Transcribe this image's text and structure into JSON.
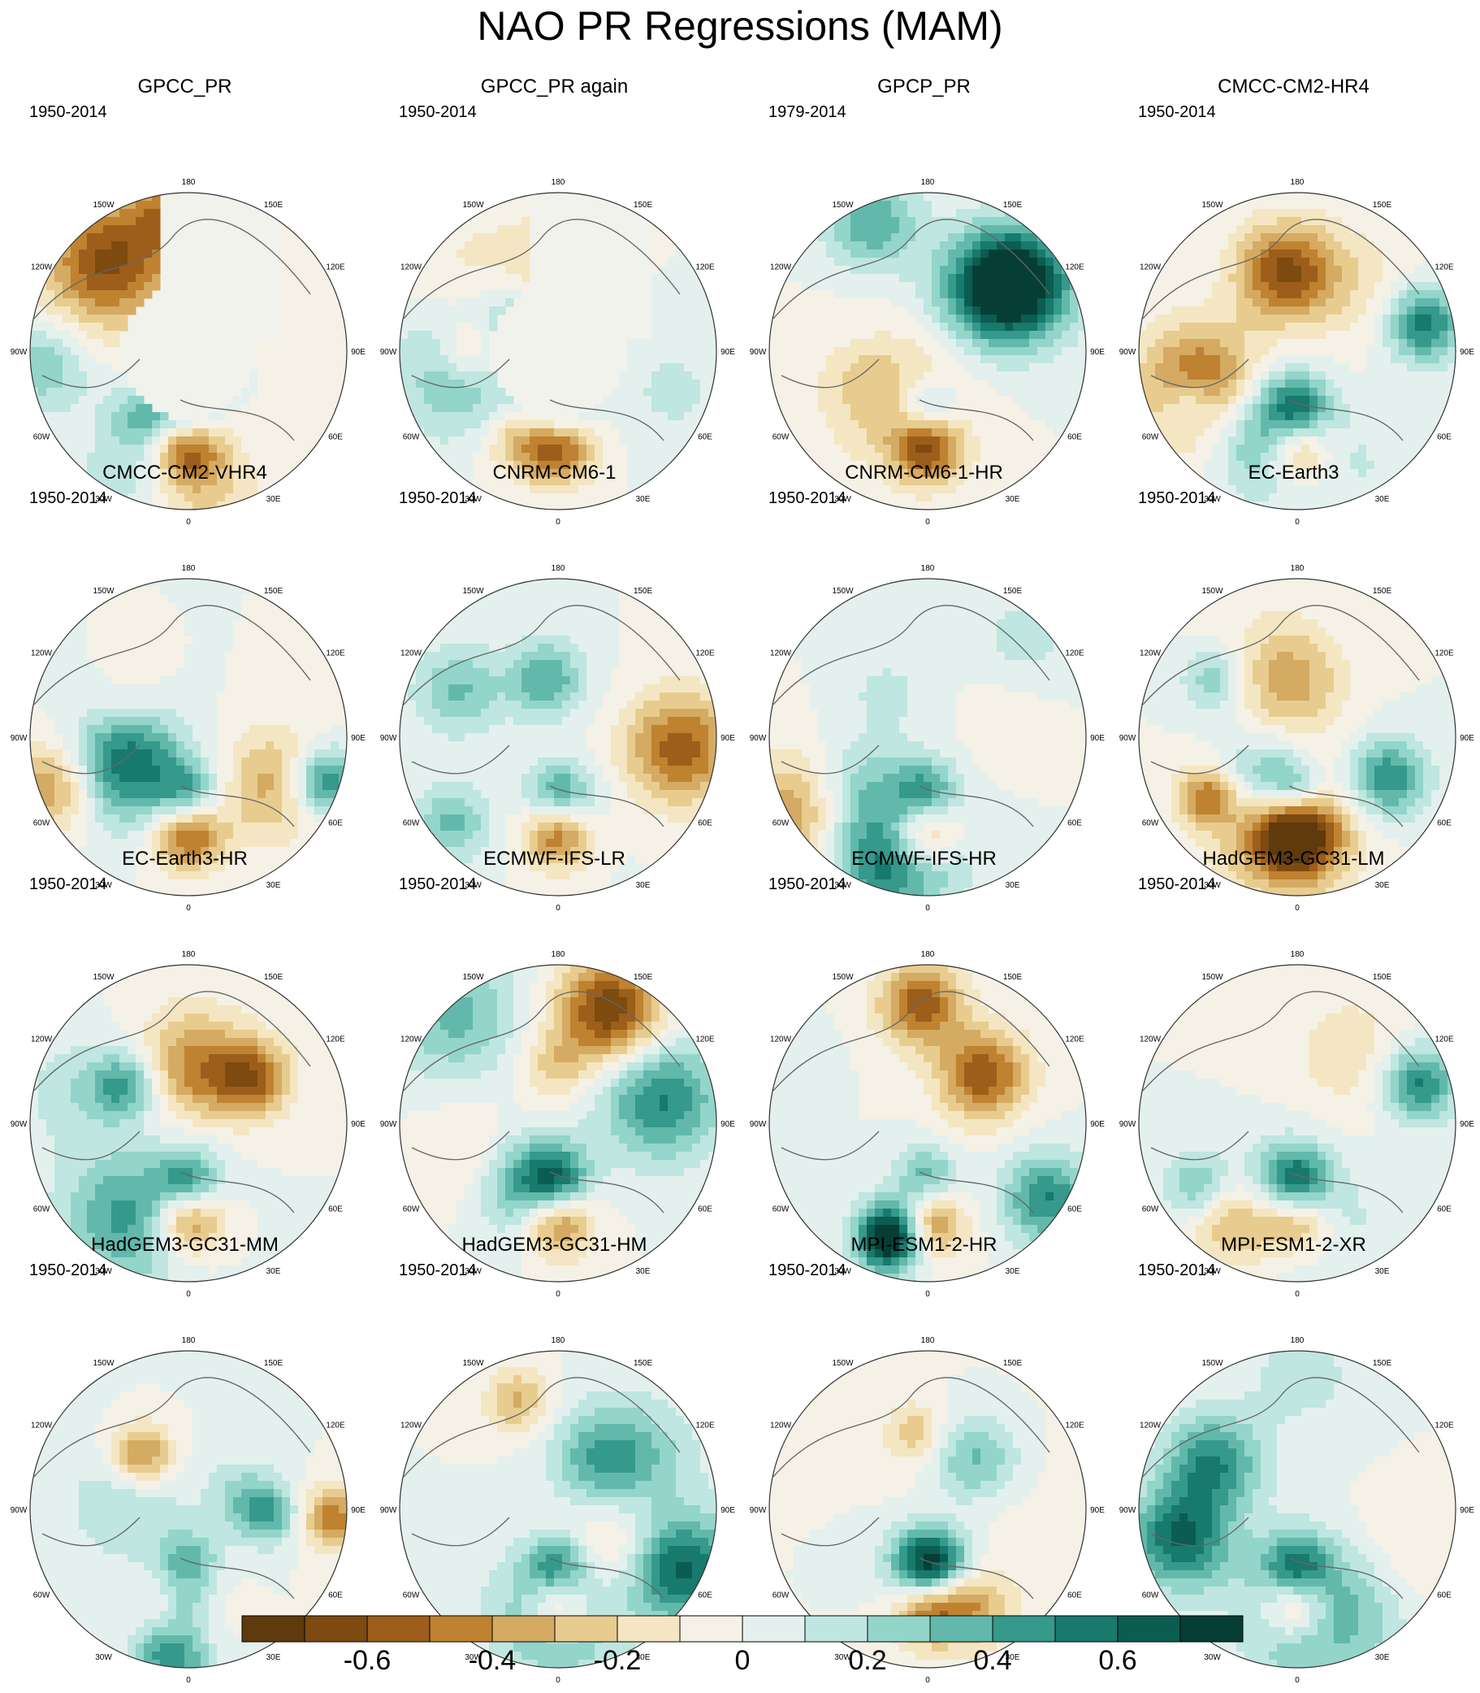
{
  "title": "NAO PR Regressions (MAM)",
  "chart_data": {
    "type": "heatmap",
    "projection": "north polar stereographic",
    "title": "NAO PR Regressions (MAM)",
    "longitude_labels": [
      "180",
      "150E",
      "120E",
      "90E",
      "60E",
      "30E",
      "0",
      "30W",
      "60W",
      "90W",
      "120W",
      "150W"
    ],
    "colorbar": {
      "tick_labels": [
        "-0.6",
        "-0.4",
        "-0.2",
        "0",
        "0.2",
        "0.4",
        "0.6"
      ],
      "tick_values": [
        -0.6,
        -0.4,
        -0.2,
        0,
        0.2,
        0.4,
        0.6
      ],
      "range": [
        -0.8,
        0.8
      ],
      "colors": [
        "#5e3a0c",
        "#7d4a10",
        "#9c5e1a",
        "#bf8230",
        "#d5aa62",
        "#e8cc8f",
        "#f4e6c2",
        "#f5f1e6",
        "#e3f0ee",
        "#bfe6e0",
        "#93d5ca",
        "#62b9ab",
        "#35998b",
        "#18796d",
        "#0b5d51",
        "#063e35"
      ]
    },
    "panels": [
      {
        "title": "GPCC_PR",
        "period": "1950-2014"
      },
      {
        "title": "GPCC_PR again",
        "period": "1950-2014"
      },
      {
        "title": "GPCP_PR",
        "period": "1979-2014"
      },
      {
        "title": "CMCC-CM2-HR4",
        "period": "1950-2014"
      },
      {
        "title": "CMCC-CM2-VHR4",
        "period": "1950-2014"
      },
      {
        "title": "CNRM-CM6-1",
        "period": "1950-2014"
      },
      {
        "title": "CNRM-CM6-1-HR",
        "period": "1950-2014"
      },
      {
        "title": "EC-Earth3",
        "period": "1950-2014"
      },
      {
        "title": "EC-Earth3-HR",
        "period": "1950-2014"
      },
      {
        "title": "ECMWF-IFS-LR",
        "period": "1950-2014"
      },
      {
        "title": "ECMWF-IFS-HR",
        "period": "1950-2014"
      },
      {
        "title": "HadGEM3-GC31-LM",
        "period": "1950-2014"
      },
      {
        "title": "HadGEM3-GC31-MM",
        "period": "1950-2014"
      },
      {
        "title": "HadGEM3-GC31-HM",
        "period": "1950-2014"
      },
      {
        "title": "MPI-ESM1-2-HR",
        "period": "1950-2014"
      },
      {
        "title": "MPI-ESM1-2-XR",
        "period": "1950-2014"
      }
    ]
  }
}
